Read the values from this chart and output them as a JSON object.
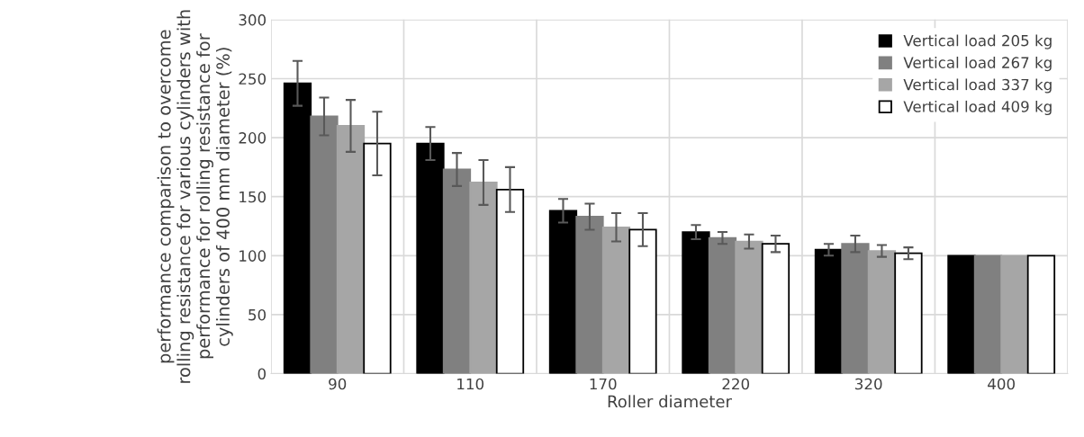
{
  "chart_data": {
    "type": "bar",
    "xlabel": "Roller diameter",
    "ylabel": "performance comparison to overcome rolling resistance for various cylinders with performance for rolling resistance for cylinders of 400 mm diameter (%)",
    "categories": [
      "90",
      "110",
      "170",
      "220",
      "320",
      "400"
    ],
    "series": [
      {
        "name": "Vertical load 205 kg",
        "color": "#000000",
        "values": [
          246,
          195,
          138,
          120,
          105,
          100
        ],
        "errors": [
          19,
          14,
          10,
          6,
          5,
          null
        ]
      },
      {
        "name": "Vertical load 267 kg",
        "color": "#808080",
        "values": [
          218,
          173,
          133,
          115,
          110,
          100
        ],
        "errors": [
          16,
          14,
          11,
          5,
          7,
          null
        ]
      },
      {
        "name": "Vertical load 337 kg",
        "color": "#a6a6a6",
        "values": [
          210,
          162,
          124,
          112,
          104,
          100
        ],
        "errors": [
          22,
          19,
          12,
          6,
          5,
          null
        ]
      },
      {
        "name": "Vertical load 409 kg",
        "color": "#ffffff",
        "values": [
          195,
          156,
          122,
          110,
          102,
          100
        ],
        "errors": [
          27,
          19,
          14,
          7,
          5,
          null
        ]
      }
    ],
    "ylim": [
      0,
      300
    ],
    "yticks": [
      0,
      50,
      100,
      150,
      200,
      250,
      300
    ],
    "grid": true,
    "legend": "top right"
  }
}
